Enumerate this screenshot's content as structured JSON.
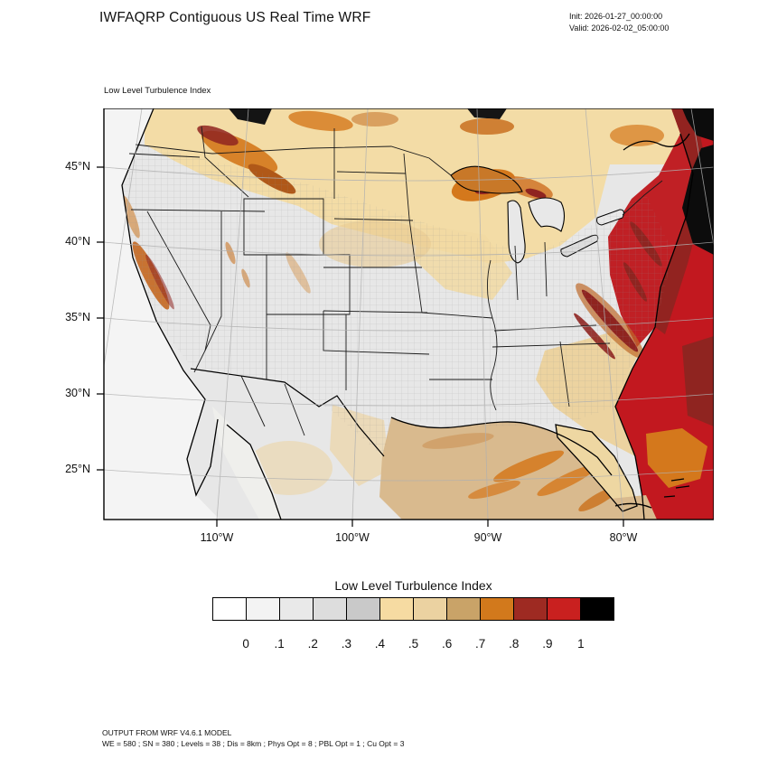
{
  "header": {
    "title": "IWFAQRP Contiguous US Real Time WRF",
    "init_label": "Init: 2026-01-27_00:00:00",
    "valid_label": "Valid: 2026-02-02_05:00:00"
  },
  "map": {
    "field_label": "Low Level Turbulence Index",
    "lat_ticks": [
      "45°N",
      "40°N",
      "35°N",
      "30°N",
      "25°N"
    ],
    "lon_ticks": [
      "110°W",
      "100°W",
      "90°W",
      "80°W"
    ]
  },
  "colorbar": {
    "title": "Low Level Turbulence Index",
    "tick_labels": [
      "0",
      ".1",
      ".2",
      ".3",
      ".4",
      ".5",
      ".6",
      ".7",
      ".8",
      ".9",
      "1"
    ],
    "colors": [
      "#ffffff",
      "#f3f3f3",
      "#e9e9e9",
      "#dddddd",
      "#c9c9c9",
      "#f6dba2",
      "#ebd2a1",
      "#c9a368",
      "#d2791c",
      "#9e2a22",
      "#c9201f",
      "#000000"
    ]
  },
  "footer": {
    "line1": "OUTPUT FROM WRF V4.6.1 MODEL",
    "line2": "WE = 580 ; SN = 380 ; Levels = 38 ; Dis = 8km ; Phys Opt = 8 ; PBL Opt = 1 ; Cu Opt = 3"
  },
  "chart_data": {
    "type": "heatmap",
    "title": "Low Level Turbulence Index",
    "value_range": [
      0,
      1
    ],
    "contour_levels": [
      0,
      0.1,
      0.2,
      0.3,
      0.4,
      0.5,
      0.6,
      0.7,
      0.8,
      0.9,
      1
    ],
    "palette": [
      "#ffffff",
      "#f3f3f3",
      "#e9e9e9",
      "#dddddd",
      "#c9c9c9",
      "#f6dba2",
      "#ebd2a1",
      "#c9a368",
      "#d2791c",
      "#9e2a22",
      "#c9201f",
      "#000000"
    ],
    "lat_ticks_deg_n": [
      45,
      40,
      35,
      30,
      25
    ],
    "lon_ticks_deg_w": [
      110,
      100,
      90,
      80
    ],
    "legend_position": "bottom",
    "notes": "Filled-contour turbulence index over contiguous US; highest values (0.8-1+, red/black) over western Atlantic and New England coast, orange ridges along Appalachians, Lake Superior, Montana Rockies and Sierra Nevada; tan 0.4-0.6 across northern plains, Gulf of Mexico and Southeast; gray <0.4 over central/western interior."
  }
}
